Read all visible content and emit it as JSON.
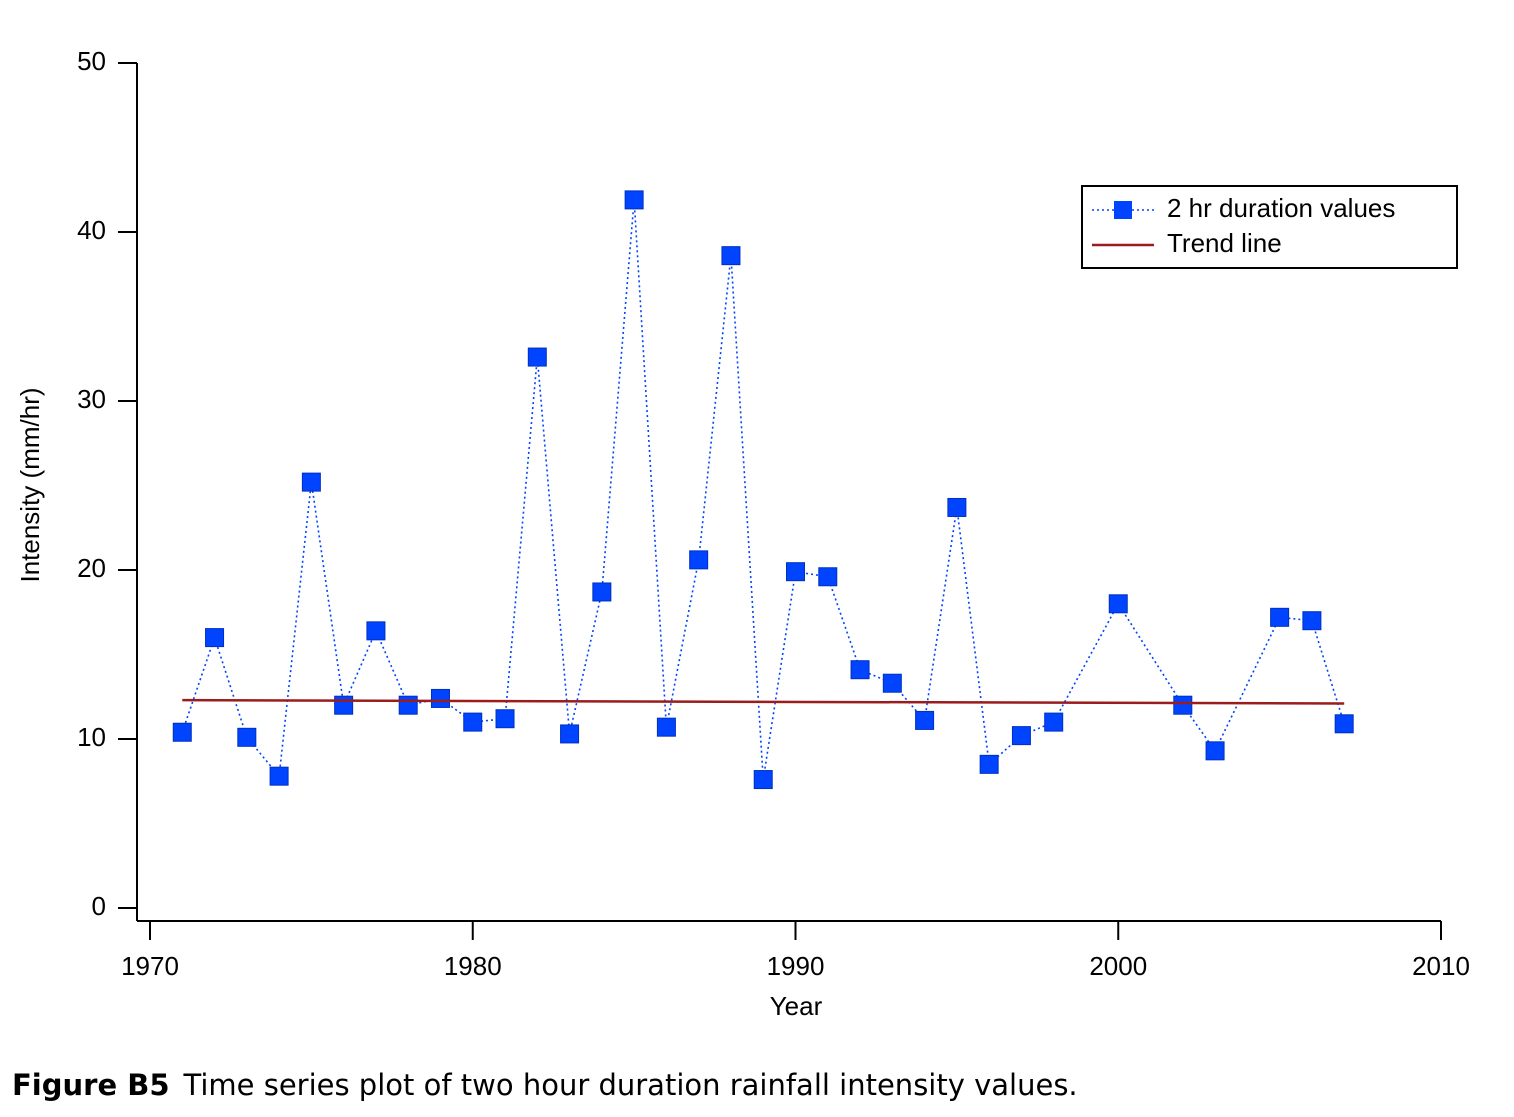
{
  "chart_data": {
    "type": "line",
    "x_label": "Year",
    "y_label": "Intensity (mm/hr)",
    "figure_label": "Figure B5",
    "caption": "Time series plot of two hour duration rainfall intensity values.",
    "xlim": [
      1970,
      2010
    ],
    "xticks": [
      1970,
      1980,
      1990,
      2000,
      2010
    ],
    "ylim": [
      0,
      50
    ],
    "yticks": [
      0,
      10,
      20,
      30,
      40,
      50
    ],
    "grid": false,
    "legend": "upper right",
    "series": [
      {
        "name": "2 hr duration values",
        "color": "#0044ff",
        "marker": "square",
        "dash": "dotted",
        "x": [
          1971,
          1972,
          1973,
          1974,
          1975,
          1976,
          1977,
          1978,
          1979,
          1980,
          1981,
          1982,
          1983,
          1984,
          1985,
          1986,
          1987,
          1988,
          1989,
          1990,
          1991,
          1992,
          1993,
          1994,
          1995,
          1996,
          1997,
          1998,
          2000,
          2002,
          2003,
          2005,
          2006,
          2007
        ],
        "values": [
          10.4,
          16.0,
          10.1,
          7.8,
          25.2,
          12.0,
          16.4,
          12.0,
          12.4,
          11.0,
          11.2,
          32.6,
          10.3,
          18.7,
          41.9,
          10.7,
          20.6,
          38.6,
          7.6,
          19.9,
          19.6,
          14.1,
          13.3,
          11.1,
          23.7,
          8.5,
          10.2,
          11.0,
          18.0,
          12.0,
          9.3,
          17.2,
          17.0,
          10.9
        ]
      },
      {
        "name": "Trend line",
        "color": "#9b1c1c",
        "marker": "none",
        "dash": "solid",
        "x": [
          1971,
          2007
        ],
        "values": [
          12.3,
          12.1
        ]
      }
    ]
  }
}
